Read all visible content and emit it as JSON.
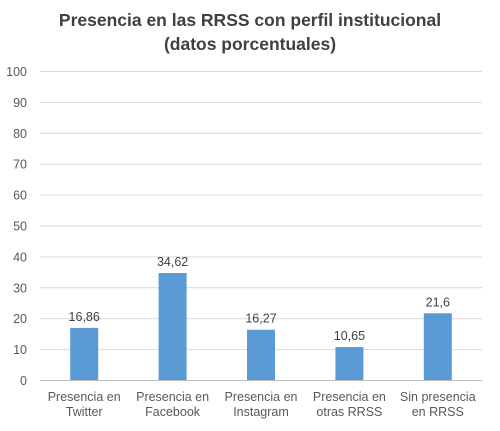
{
  "chart_data": {
    "type": "bar",
    "title_lines": [
      "Presencia en las RRSS con perfil institucional",
      "(datos porcentuales)"
    ],
    "categories": [
      [
        "Presencia en",
        "Twitter"
      ],
      [
        "Presencia en",
        "Facebook"
      ],
      [
        "Presencia en",
        "Instagram"
      ],
      [
        "Presencia en",
        "otras RRSS"
      ],
      [
        "Sin presencia",
        "en RRSS"
      ]
    ],
    "values": [
      16.86,
      34.62,
      16.27,
      10.65,
      21.6
    ],
    "data_labels": [
      "16,86",
      "34,62",
      "16,27",
      "10,65",
      "21,6"
    ],
    "ylim": [
      0,
      100
    ],
    "yticks": [
      0,
      10,
      20,
      30,
      40,
      50,
      60,
      70,
      80,
      90,
      100
    ],
    "grid": true,
    "legend": "none",
    "bar_color": "#5B9BD5",
    "grid_color": "#D9D9D9"
  }
}
